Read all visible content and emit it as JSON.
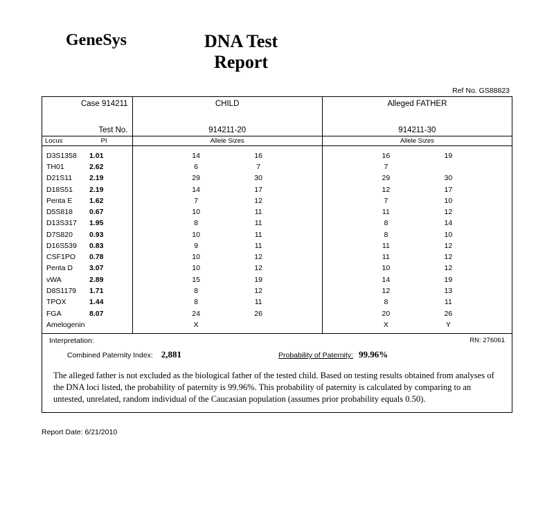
{
  "logo": "GeneSys",
  "title_line1": "DNA Test",
  "title_line2": "Report",
  "ref_no_label": "Ref No. GS88823",
  "case_label": "Case 914211",
  "child_label": "CHILD",
  "father_label": "Alleged FATHER",
  "test_no_label": "Test No.",
  "child_testno": "914211-20",
  "father_testno": "914211-30",
  "locus_hdr": "Locus",
  "pi_hdr": "PI",
  "allele_hdr": "Allele Sizes",
  "rows": [
    {
      "locus": "D3S1358",
      "pi": "1.01",
      "c1": "14",
      "c2": "16",
      "f1": "16",
      "f2": "19"
    },
    {
      "locus": "TH01",
      "pi": "2.62",
      "c1": "6",
      "c2": "7",
      "f1": "7",
      "f2": ""
    },
    {
      "locus": "D21S11",
      "pi": "2.19",
      "c1": "29",
      "c2": "30",
      "f1": "29",
      "f2": "30"
    },
    {
      "locus": "D18S51",
      "pi": "2.19",
      "c1": "14",
      "c2": "17",
      "f1": "12",
      "f2": "17"
    },
    {
      "locus": "Penta E",
      "pi": "1.62",
      "c1": "7",
      "c2": "12",
      "f1": "7",
      "f2": "10"
    },
    {
      "locus": "D5S818",
      "pi": "0.67",
      "c1": "10",
      "c2": "11",
      "f1": "11",
      "f2": "12"
    },
    {
      "locus": "D13S317",
      "pi": "1.95",
      "c1": "8",
      "c2": "11",
      "f1": "8",
      "f2": "14"
    },
    {
      "locus": "D7S820",
      "pi": "0.93",
      "c1": "10",
      "c2": "11",
      "f1": "8",
      "f2": "10"
    },
    {
      "locus": "D16S539",
      "pi": "0.83",
      "c1": "9",
      "c2": "11",
      "f1": "11",
      "f2": "12"
    },
    {
      "locus": "CSF1PO",
      "pi": "0.78",
      "c1": "10",
      "c2": "12",
      "f1": "11",
      "f2": "12"
    },
    {
      "locus": "Penta D",
      "pi": "3.07",
      "c1": "10",
      "c2": "12",
      "f1": "10",
      "f2": "12"
    },
    {
      "locus": "vWA",
      "pi": "2.89",
      "c1": "15",
      "c2": "19",
      "f1": "14",
      "f2": "19"
    },
    {
      "locus": "D8S1179",
      "pi": "1.71",
      "c1": "8",
      "c2": "12",
      "f1": "12",
      "f2": "13"
    },
    {
      "locus": "TPOX",
      "pi": "1.44",
      "c1": "8",
      "c2": "11",
      "f1": "8",
      "f2": "11"
    },
    {
      "locus": "FGA",
      "pi": "8.07",
      "c1": "24",
      "c2": "26",
      "f1": "20",
      "f2": "26"
    },
    {
      "locus": "Amelogenin",
      "pi": "",
      "c1": "X",
      "c2": "",
      "f1": "X",
      "f2": "Y"
    }
  ],
  "interpretation_label": "Interpretation:",
  "rn_label": "RN: 276061",
  "cpi_label": "Combined Paternity Index:",
  "cpi_value": "2,881",
  "pop_label": "Probability of Paternity:",
  "pop_value": "99.96%",
  "interp_text": "The alleged father is not excluded as the biological father of the tested child.  Based on testing results obtained from analyses of the DNA loci listed, the probability of paternity is 99.96%.  This probability of paternity is calculated by comparing to an untested, unrelated, random individual of the Caucasian population (assumes prior probability equals 0.50).",
  "report_date": "Report Date: 6/21/2010"
}
